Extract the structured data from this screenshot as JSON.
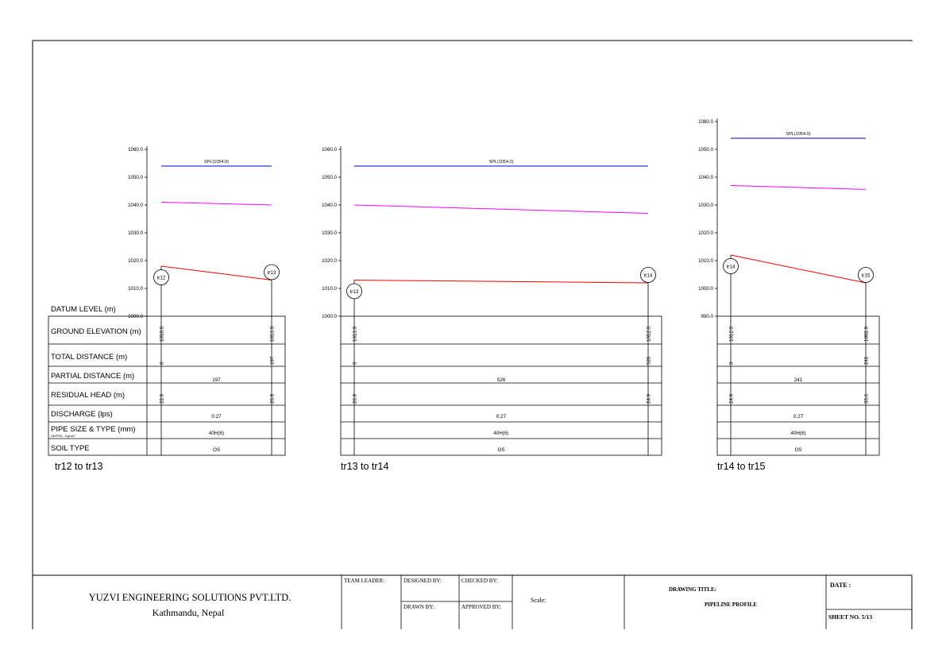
{
  "profiles": [
    {
      "caption": "tr12 to tr13",
      "axis": {
        "ticks": [
          "1060.0",
          "1050.0",
          "1040.0",
          "1030.0",
          "1020.0",
          "1010.0",
          "1000.0"
        ],
        "min": 1000,
        "max": 1060
      },
      "row_labels": {
        "datum": "DATUM LEVEL (m)",
        "ground": "GROUND ELEVATION (m)",
        "total": "TOTAL DISTANCE (m)",
        "partial": "PARTIAL DISTANCE (m)",
        "residual": "RESIDUAL HEAD (m)",
        "discharge": "DISCHARGE (lps)",
        "pipe": "PIPE SIZE & TYPE (mm)",
        "pipe_sub": "HDPE/6 - Kg/cm²",
        "soil": "SOIL TYPE"
      },
      "spl_label": "SPL(1054.0)",
      "spl": 1054.0,
      "hgl": [
        1041.0,
        1040.0
      ],
      "ground": [
        1018.0,
        1013.0
      ],
      "nodes": [
        "tr12",
        "tr13"
      ],
      "ground_values": [
        "1018.0",
        "1013.0"
      ],
      "total_values": [
        "0",
        "197"
      ],
      "partial": "197",
      "residual_values": [
        "22.9",
        "26.9"
      ],
      "discharge": "0.27",
      "pipe": "40H(6)",
      "soil": "OS"
    },
    {
      "caption": "tr13 to tr14",
      "axis": {
        "ticks": [
          "1060.0",
          "1050.0",
          "1040.0",
          "1030.0",
          "1020.0",
          "1010.0",
          "1000.0"
        ],
        "min": 1000,
        "max": 1060
      },
      "spl_label": "SPL(1054.0)",
      "spl": 1054.0,
      "hgl": [
        1040.0,
        1037.0
      ],
      "ground": [
        1013.0,
        1012.0
      ],
      "nodes": [
        "tr13",
        "tr14"
      ],
      "ground_values": [
        "1013.0",
        "1012.0"
      ],
      "total_values": [
        "0",
        "526"
      ],
      "partial": "526",
      "residual_values": [
        "26.9",
        "24.9"
      ],
      "discharge": "0.27",
      "pipe": "40H(6)",
      "soil": "OS"
    },
    {
      "caption": "tr14 to tr15",
      "axis": {
        "ticks": [
          "1060.0",
          "1050.0",
          "1040.0",
          "1030.0",
          "1020.0",
          "1010.0",
          "1000.0",
          "990.0"
        ],
        "min": 990,
        "max": 1060
      },
      "spl_label": "SPL(1054.0)",
      "spl": 1054.0,
      "hgl": [
        1037.0,
        1035.6
      ],
      "ground": [
        1012.0,
        1002.0
      ],
      "nodes": [
        "tr14",
        "tr15"
      ],
      "ground_values": [
        "1012.0",
        "1002.0"
      ],
      "total_values": [
        "0",
        "241"
      ],
      "partial": "241",
      "residual_values": [
        "24.9",
        "33.6"
      ],
      "discharge": "0.27",
      "pipe": "40H(6)",
      "soil": "OS"
    }
  ],
  "title_block": {
    "company": "YUZVI ENGINEERING SOLUTIONS PVT.LTD.",
    "location": "Kathmandu, Nepal",
    "team_leader": "TEAM LEADER:",
    "designed_by": "DESIGNED BY:",
    "checked_by": "CHECKED BY:",
    "drawn_by": "DRAWN BY:",
    "approved_by": "APPROVED BY:",
    "scale": "Scale:",
    "drawing_title_label": "DRAWING TITLE:",
    "drawing_title": "PIPELINE PROFILE",
    "date": "DATE :",
    "sheet_no": "SHEET NO. 5/13"
  },
  "colors": {
    "spl": "#0000cc",
    "hgl": "#ff00ff",
    "ground": "#ff0000",
    "line": "#000000"
  }
}
